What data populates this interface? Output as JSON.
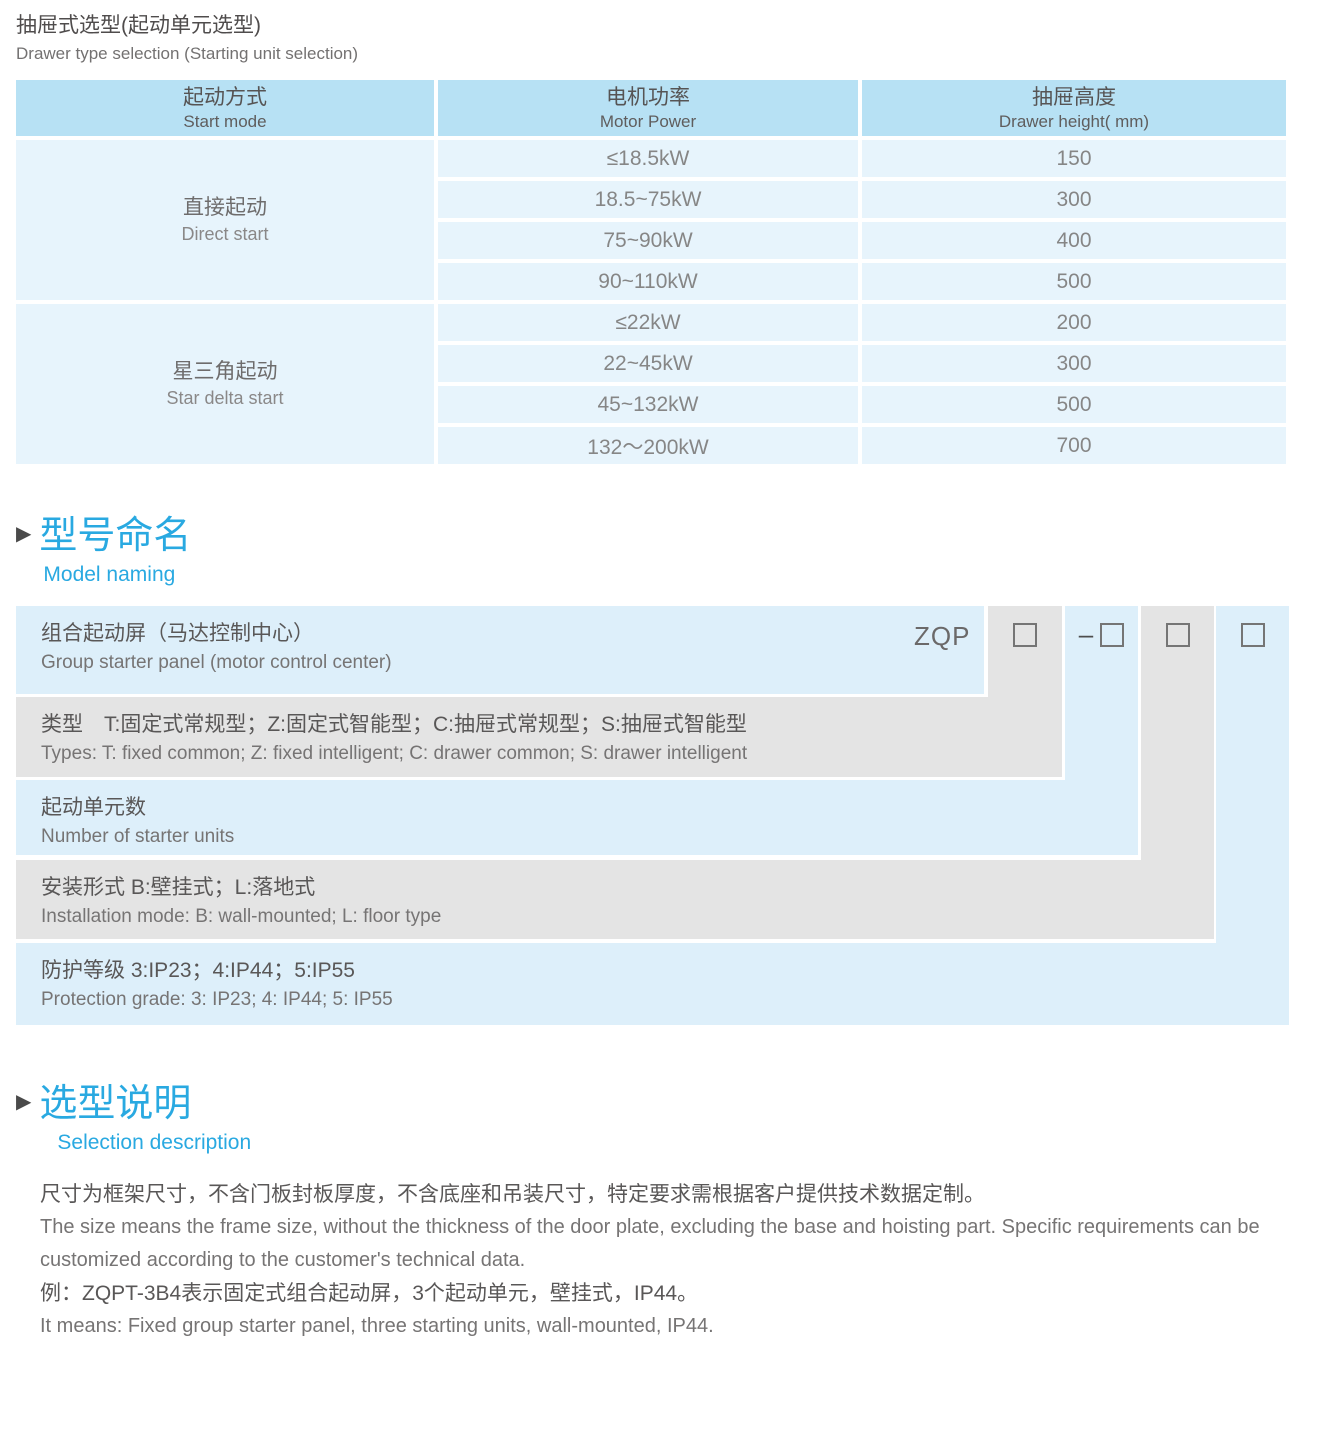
{
  "page": {
    "title_cn": "抽屉式选型(起动单元选型)",
    "title_en": "Drawer type selection (Starting unit selection)"
  },
  "selection_table": {
    "headers": [
      {
        "cn": "起动方式",
        "en": "Start mode"
      },
      {
        "cn": "电机功率",
        "en": "Motor Power"
      },
      {
        "cn": "抽屉高度",
        "en": "Drawer height( mm)"
      }
    ],
    "groups": [
      {
        "mode_cn": "直接起动",
        "mode_en": "Direct start"
      },
      {
        "mode_cn": "星三角起动",
        "mode_en": "Star delta start"
      }
    ],
    "rows": [
      {
        "power": "≤18.5kW",
        "height": "150"
      },
      {
        "power": "18.5~75kW",
        "height": "300"
      },
      {
        "power": "75~90kW",
        "height": "400"
      },
      {
        "power": "90~110kW",
        "height": "500"
      },
      {
        "power": "≤22kW",
        "height": "200"
      },
      {
        "power": "22~45kW",
        "height": "300"
      },
      {
        "power": "45~132kW",
        "height": "500"
      },
      {
        "power": "132～200kW",
        "height": "700"
      }
    ]
  },
  "model_naming": {
    "section_cn": "型号命名",
    "section_en": "Model naming",
    "prefix": "ZQP",
    "dash": "–",
    "rows": [
      {
        "cn": "组合起动屏（马达控制中心）",
        "en": "Group starter panel (motor control center)"
      },
      {
        "cn": "类型　T:固定式常规型；Z:固定式智能型；C:抽屉式常规型；S:抽屉式智能型",
        "en": "Types: T: fixed common; Z: fixed intelligent; C: drawer common; S: drawer intelligent"
      },
      {
        "cn": "起动单元数",
        "en": "Number of starter units"
      },
      {
        "cn": "安装形式 B:壁挂式；L:落地式",
        "en": "Installation mode: B: wall-mounted; L: floor type"
      },
      {
        "cn": "防护等级 3:IP23；4:IP44；5:IP55",
        "en": "Protection grade:  3: IP23; 4: IP44; 5: IP55"
      }
    ]
  },
  "selection_desc": {
    "section_cn": "选型说明",
    "section_en": "Selection description",
    "p1_cn": "尺寸为框架尺寸，不含门板封板厚度，不含底座和吊装尺寸，特定要求需根据客户提供技术数据定制。",
    "p1_en": "The size means the frame size, without the thickness of the door plate, excluding the base and hoisting part. Specific requirements can be customized according to the customer's technical data.",
    "p2_cn": "例：ZQPT-3B4表示固定式组合起动屏，3个起动单元，壁挂式，IP44。",
    "p2_en": "It means: Fixed group starter panel, three starting units, wall-mounted, IP44."
  },
  "colors": {
    "accent_blue": "#29a9e1",
    "table_header_blue": "#b7e1f4",
    "table_cell_blue": "#e7f4fc",
    "model_row_blue": "#ddeffa",
    "model_row_gray": "#e4e4e4",
    "text_dark": "#595757",
    "text_light": "#767474"
  }
}
